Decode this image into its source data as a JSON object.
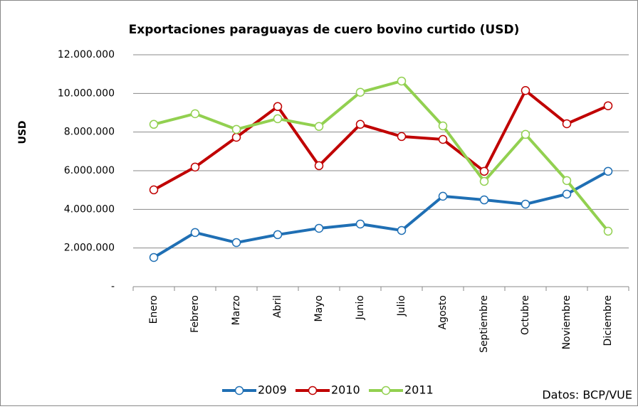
{
  "chart_data": {
    "type": "line",
    "title": "Exportaciones paraguayas de cuero bovino curtido (USD)",
    "y_label": "USD",
    "note": "Datos: BCP/VUE",
    "categories": [
      "Enero",
      "Febrero",
      "Marzo",
      "Abril",
      "Mayo",
      "Junio",
      "Julio",
      "Agosto",
      "Septiembre",
      "Octubre",
      "Noviembre",
      "Diciembre"
    ],
    "series": [
      {
        "name": "2009",
        "color": "#1f6fb4",
        "values": [
          1510000,
          2800000,
          2280000,
          2690000,
          3020000,
          3240000,
          2910000,
          4680000,
          4490000,
          4270000,
          4790000,
          5970000
        ]
      },
      {
        "name": "2010",
        "color": "#c00000",
        "values": [
          5010000,
          6190000,
          7730000,
          9320000,
          6260000,
          8400000,
          7770000,
          7620000,
          5970000,
          10150000,
          8430000,
          9360000
        ]
      },
      {
        "name": "2011",
        "color": "#92d050",
        "values": [
          8400000,
          8950000,
          8140000,
          8690000,
          8290000,
          10060000,
          10640000,
          8320000,
          5450000,
          7880000,
          5490000,
          2870000
        ]
      }
    ],
    "ylim": [
      0,
      12000000
    ],
    "yticks": [
      {
        "value": 0,
        "label": "-"
      },
      {
        "value": 2000000,
        "label": "2.000.000"
      },
      {
        "value": 4000000,
        "label": "4.000.000"
      },
      {
        "value": 6000000,
        "label": "6.000.000"
      },
      {
        "value": 8000000,
        "label": "8.000.000"
      },
      {
        "value": 10000000,
        "label": "10.000.000"
      },
      {
        "value": 12000000,
        "label": "12.000.000"
      }
    ],
    "grid": true,
    "legend": "bottom"
  }
}
